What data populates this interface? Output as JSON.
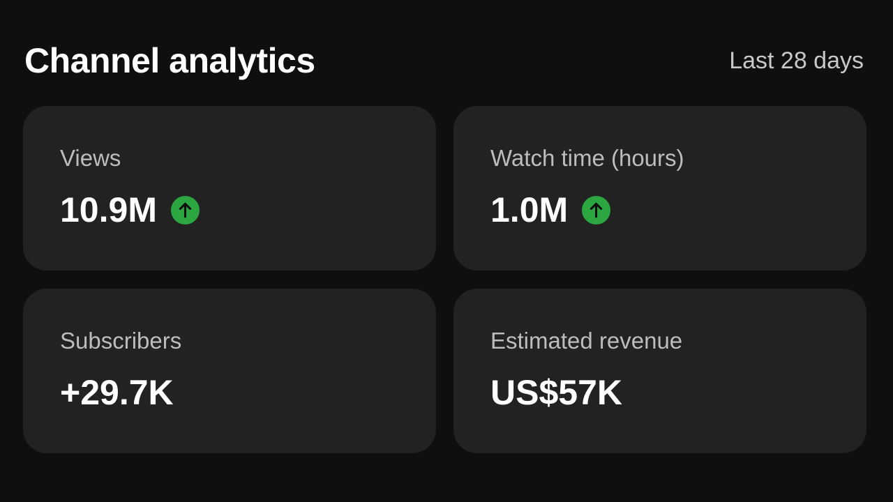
{
  "header": {
    "title": "Channel analytics",
    "period": "Last 28 days"
  },
  "cards": [
    {
      "label": "Views",
      "value": "10.9M",
      "trend": "up"
    },
    {
      "label": "Watch time (hours)",
      "value": "1.0M",
      "trend": "up"
    },
    {
      "label": "Subscribers",
      "value": "+29.7K"
    },
    {
      "label": "Estimated revenue",
      "value": "US$57K"
    }
  ]
}
